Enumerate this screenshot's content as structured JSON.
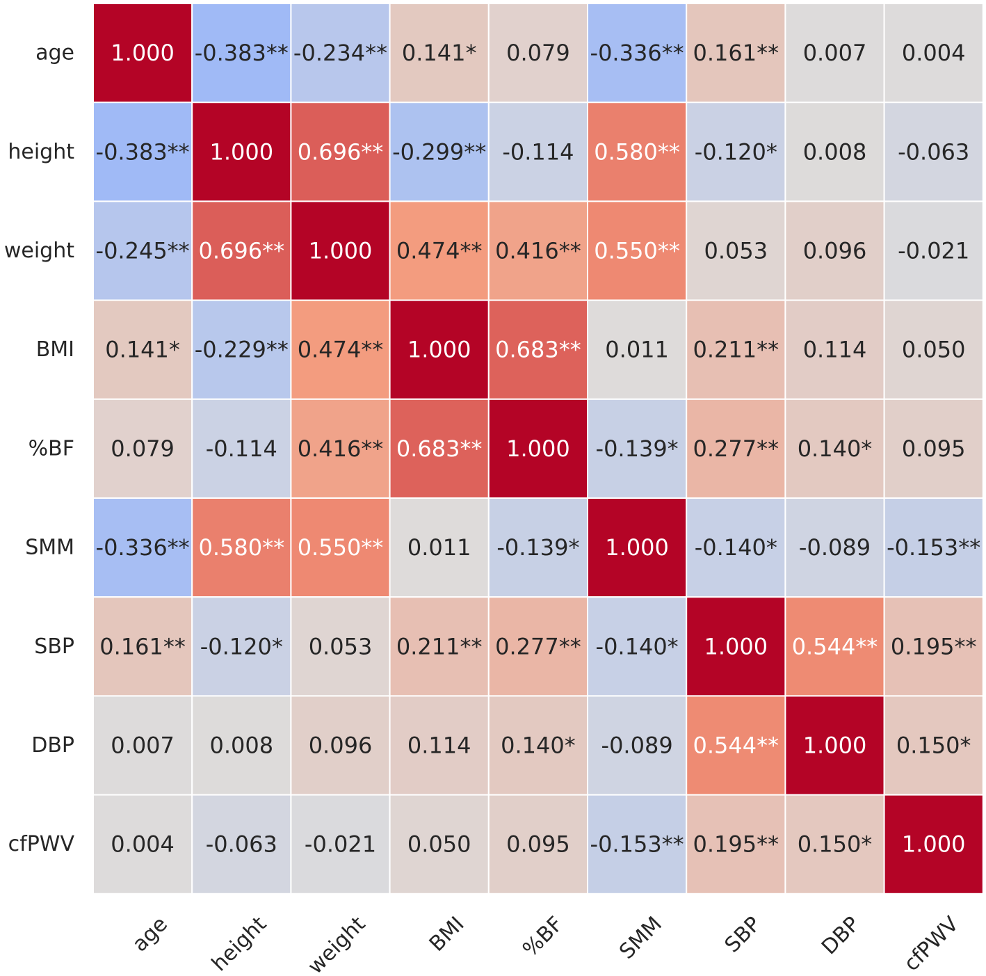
{
  "chart_data": {
    "type": "heatmap",
    "title": "",
    "xlabel": "",
    "ylabel": "",
    "colormap": "coolwarm",
    "vmin": -1,
    "vmax": 1,
    "labels": [
      "age",
      "height",
      "weight",
      "BMI",
      "%BF",
      "SMM",
      "SBP",
      "DBP",
      "cfPWV"
    ],
    "values": [
      [
        1.0,
        -0.383,
        -0.234,
        0.141,
        0.079,
        -0.336,
        0.161,
        0.007,
        0.004
      ],
      [
        -0.383,
        1.0,
        0.696,
        -0.299,
        -0.114,
        0.58,
        -0.12,
        0.008,
        -0.063
      ],
      [
        -0.245,
        0.696,
        1.0,
        0.474,
        0.416,
        0.55,
        0.053,
        0.096,
        -0.021
      ],
      [
        0.141,
        -0.229,
        0.474,
        1.0,
        0.683,
        0.011,
        0.211,
        0.114,
        0.05
      ],
      [
        0.079,
        -0.114,
        0.416,
        0.683,
        1.0,
        -0.139,
        0.277,
        0.14,
        0.095
      ],
      [
        -0.336,
        0.58,
        0.55,
        0.011,
        -0.139,
        1.0,
        -0.14,
        -0.089,
        -0.153
      ],
      [
        0.161,
        -0.12,
        0.053,
        0.211,
        0.277,
        -0.14,
        1.0,
        0.544,
        0.195
      ],
      [
        0.007,
        0.008,
        0.096,
        0.114,
        0.14,
        -0.089,
        0.544,
        1.0,
        0.15
      ],
      [
        0.004,
        -0.063,
        -0.021,
        0.05,
        0.095,
        -0.153,
        0.195,
        0.15,
        1.0
      ]
    ],
    "annotations": [
      [
        "1.000",
        "-0.383**",
        "-0.234**",
        "0.141*",
        "0.079",
        "-0.336**",
        "0.161**",
        "0.007",
        "0.004"
      ],
      [
        "-0.383**",
        "1.000",
        "0.696**",
        "-0.299**",
        "-0.114",
        "0.580**",
        "-0.120*",
        "0.008",
        "-0.063"
      ],
      [
        "-0.245**",
        "0.696**",
        "1.000",
        "0.474**",
        "0.416**",
        "0.550**",
        "0.053",
        "0.096",
        "-0.021"
      ],
      [
        "0.141*",
        "-0.229**",
        "0.474**",
        "1.000",
        "0.683**",
        "0.011",
        "0.211**",
        "0.114",
        "0.050"
      ],
      [
        "0.079",
        "-0.114",
        "0.416**",
        "0.683**",
        "1.000",
        "-0.139*",
        "0.277**",
        "0.140*",
        "0.095"
      ],
      [
        "-0.336**",
        "0.580**",
        "0.550**",
        "0.011",
        "-0.139*",
        "1.000",
        "-0.140*",
        "-0.089",
        "-0.153**"
      ],
      [
        "0.161**",
        "-0.120*",
        "0.053",
        "0.211**",
        "0.277**",
        "-0.140*",
        "1.000",
        "0.544**",
        "0.195**"
      ],
      [
        "0.007",
        "0.008",
        "0.096",
        "0.114",
        "0.140*",
        "-0.089",
        "0.544**",
        "1.000",
        "0.150*"
      ],
      [
        "0.004",
        "-0.063",
        "-0.021",
        "0.050",
        "0.095",
        "-0.153**",
        "0.195**",
        "0.150*",
        "1.000"
      ]
    ],
    "text_color_dark": "#262626",
    "text_color_light": "#ffffff",
    "gridline_color": "#ffffff"
  }
}
